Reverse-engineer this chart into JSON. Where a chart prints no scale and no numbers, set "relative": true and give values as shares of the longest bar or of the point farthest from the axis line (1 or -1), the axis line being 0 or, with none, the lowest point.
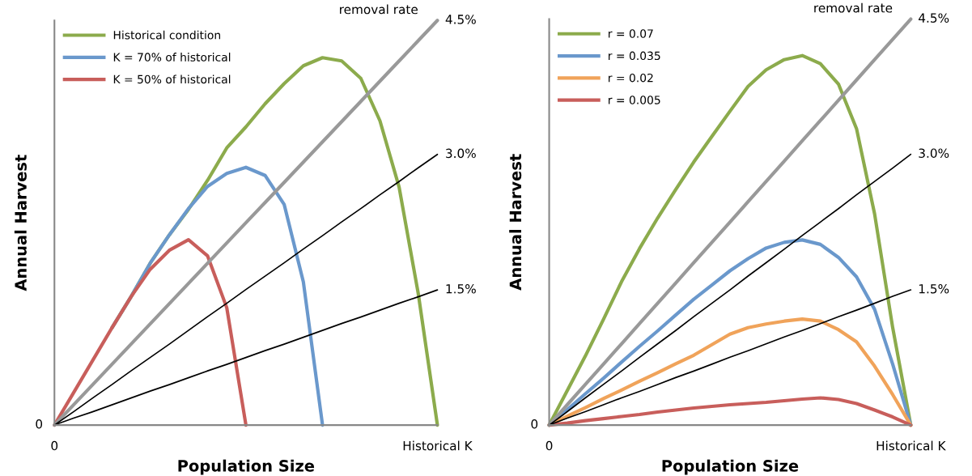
{
  "chart_data": [
    {
      "type": "line",
      "relative": true,
      "xlabel": "Population Size",
      "ylabel": "Annual Harvest",
      "categories": [
        "0",
        null,
        null,
        null,
        null,
        null,
        null,
        null,
        null,
        null,
        null,
        null,
        null,
        null,
        null,
        null,
        null,
        null,
        null,
        null,
        "Historical K"
      ],
      "series": [
        {
          "name": "Historical condition",
          "color": "#8cab4c",
          "values": [
            null,
            null,
            null,
            0.24,
            0.317,
            0.4,
            0.47,
            0.533,
            0.605,
            0.685,
            0.737,
            0.794,
            0.844,
            0.888,
            0.908,
            0.9,
            0.857,
            0.752,
            0.588,
            0.325,
            0
          ]
        },
        {
          "name": "K = 70% of historical",
          "color": "#6a98cc",
          "values": [
            null,
            null,
            null,
            0.24,
            0.317,
            0.4,
            0.47,
            0.535,
            0.59,
            0.622,
            0.637,
            0.617,
            0.545,
            0.354,
            0,
            null,
            null,
            null,
            null,
            null,
            null
          ]
        },
        {
          "name": "K = 50% of historical",
          "color": "#c85e5b",
          "values": [
            0,
            0.08,
            0.16,
            0.24,
            0.317,
            0.385,
            0.432,
            0.458,
            0.418,
            0.29,
            0,
            null,
            null,
            null,
            null,
            null,
            null,
            null,
            null,
            null,
            null
          ]
        },
        {
          "type": "line",
          "name": "4.5%",
          "color": "#999999",
          "values": [
            0,
            0.05,
            0.1,
            0.15,
            0.2,
            0.25,
            0.3,
            0.35,
            0.4,
            0.45,
            0.5,
            0.55,
            0.6,
            0.65,
            0.7,
            0.75,
            0.8,
            0.85,
            0.9,
            0.95,
            1
          ]
        },
        {
          "type": "line",
          "name": "3.0%",
          "color": "#000000",
          "values": [
            0,
            0.033,
            0.067,
            0.1,
            0.134,
            0.167,
            0.2,
            0.234,
            0.268,
            0.301,
            0.335,
            0.368,
            0.401,
            0.435,
            0.468,
            0.502,
            0.535,
            0.569,
            0.602,
            0.636,
            0.669
          ]
        },
        {
          "type": "line",
          "name": "1.5%",
          "color": "#000000",
          "values": [
            0,
            0.017,
            0.033,
            0.05,
            0.067,
            0.084,
            0.1,
            0.117,
            0.134,
            0.15,
            0.167,
            0.184,
            0.2,
            0.217,
            0.234,
            0.251,
            0.267,
            0.284,
            0.301,
            0.317,
            0.334
          ]
        }
      ],
      "legend": "top left",
      "annotations": [
        "removal rate",
        "0"
      ]
    },
    {
      "type": "line",
      "relative": true,
      "xlabel": "Population Size",
      "ylabel": "Annual Harvest",
      "categories": [
        "0",
        null,
        null,
        null,
        null,
        null,
        null,
        null,
        null,
        null,
        null,
        null,
        null,
        null,
        null,
        null,
        null,
        null,
        null,
        null,
        "Historical K"
      ],
      "series": [
        {
          "name": "r = 0.07",
          "color": "#8cab4c",
          "values": [
            0,
            0.085,
            0.17,
            0.26,
            0.353,
            0.435,
            0.51,
            0.58,
            0.648,
            0.711,
            0.773,
            0.834,
            0.875,
            0.9,
            0.91,
            0.89,
            0.84,
            0.73,
            0.52,
            0.24,
            0
          ]
        },
        {
          "name": "r = 0.035",
          "color": "#6a98cc",
          "values": [
            0,
            0.038,
            0.077,
            0.115,
            0.155,
            0.194,
            0.232,
            0.271,
            0.31,
            0.345,
            0.38,
            0.41,
            0.436,
            0.45,
            0.456,
            0.445,
            0.413,
            0.365,
            0.285,
            0.15,
            0
          ]
        },
        {
          "name": "r = 0.02",
          "color": "#f0a35a",
          "values": [
            0,
            0.022,
            0.043,
            0.065,
            0.086,
            0.108,
            0.129,
            0.151,
            0.172,
            0.198,
            0.224,
            0.24,
            0.249,
            0.256,
            0.261,
            0.256,
            0.235,
            0.205,
            0.145,
            0.075,
            0
          ]
        },
        {
          "name": "r = 0.005",
          "color": "#c85e5b",
          "values": [
            0,
            0.005,
            0.011,
            0.016,
            0.021,
            0.026,
            0.032,
            0.037,
            0.042,
            0.046,
            0.05,
            0.053,
            0.056,
            0.06,
            0.064,
            0.067,
            0.063,
            0.053,
            0.037,
            0.02,
            0
          ]
        },
        {
          "type": "line",
          "name": "4.5%",
          "color": "#999999",
          "values": [
            0,
            0.05,
            0.1,
            0.15,
            0.2,
            0.25,
            0.3,
            0.35,
            0.4,
            0.45,
            0.5,
            0.55,
            0.6,
            0.65,
            0.7,
            0.75,
            0.8,
            0.85,
            0.9,
            0.95,
            1
          ]
        },
        {
          "type": "line",
          "name": "3.0%",
          "color": "#000000",
          "values": [
            0,
            0.033,
            0.067,
            0.1,
            0.133,
            0.167,
            0.2,
            0.233,
            0.267,
            0.3,
            0.333,
            0.367,
            0.4,
            0.433,
            0.467,
            0.5,
            0.533,
            0.567,
            0.6,
            0.633,
            0.667
          ]
        },
        {
          "type": "line",
          "name": "1.5%",
          "color": "#000000",
          "values": [
            0,
            0.017,
            0.033,
            0.05,
            0.067,
            0.083,
            0.1,
            0.117,
            0.133,
            0.15,
            0.167,
            0.183,
            0.2,
            0.217,
            0.233,
            0.25,
            0.267,
            0.283,
            0.3,
            0.317,
            0.333
          ]
        }
      ],
      "legend": "top left",
      "annotations": [
        "removal rate",
        "0"
      ]
    }
  ]
}
